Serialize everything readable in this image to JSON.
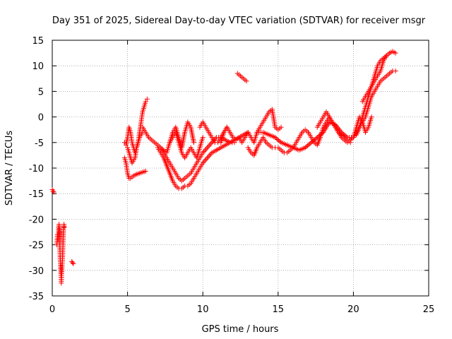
{
  "chart_data": {
    "type": "scatter",
    "title": "Day 351 of 2025, Sidereal Day-to-day VTEC variation (SDTVAR) for receiver msgr",
    "xlabel": "GPS time / hours",
    "ylabel": "SDTVAR / TECUs",
    "xlim": [
      0,
      25
    ],
    "ylim": [
      -35,
      15
    ],
    "xticks": [
      0,
      5,
      10,
      15,
      20,
      25
    ],
    "yticks": [
      -35,
      -30,
      -25,
      -20,
      -15,
      -10,
      -5,
      0,
      5,
      10,
      15
    ],
    "grid": true,
    "marker": "+",
    "color": "#ff0000",
    "series": [
      {
        "segments": [
          {
            "x": [
              0.0,
              0.05,
              0.1
            ],
            "y": [
              -14.2,
              -14.5,
              -14.7
            ]
          },
          {
            "x": [
              0.3,
              0.35,
              0.4,
              0.42,
              0.45,
              0.5,
              0.5,
              0.52,
              0.55,
              0.58,
              0.6,
              0.62,
              0.65,
              0.68,
              0.7,
              0.72,
              0.75,
              0.78,
              0.8
            ],
            "y": [
              -25,
              -23,
              -24,
              -22,
              -21,
              -22.5,
              -25,
              -27,
              -29,
              -31,
              -32.5,
              -31,
              -29.5,
              -28,
              -26,
              -24,
              -22,
              -21,
              -21.5
            ]
          },
          {
            "x": [
              1.3,
              1.35,
              1.4
            ],
            "y": [
              -28.3,
              -28.5,
              -28.7
            ]
          },
          {
            "x": [
              4.8,
              4.9,
              5.0,
              5.1,
              5.2,
              5.3,
              5.4,
              5.5,
              5.6,
              5.7,
              5.8,
              5.9,
              6.0,
              6.1,
              6.2,
              6.3
            ],
            "y": [
              -5,
              -5.5,
              -4,
              -2,
              -3,
              -5,
              -6,
              -7,
              -6,
              -5,
              -3,
              -1,
              1,
              2,
              3,
              3.5
            ]
          },
          {
            "x": [
              4.8,
              4.9,
              5.0,
              5.1,
              5.2,
              5.4,
              5.6,
              5.8,
              6.0,
              6.2
            ],
            "y": [
              -8,
              -9,
              -11,
              -12,
              -12,
              -11.5,
              -11.2,
              -11,
              -10.8,
              -10.6
            ]
          },
          {
            "x": [
              5.0,
              5.1,
              5.2,
              5.3,
              5.5,
              5.6,
              5.8,
              6.0
            ],
            "y": [
              -6,
              -7,
              -8,
              -9,
              -8,
              -6,
              -4,
              -3
            ]
          },
          {
            "x": [
              6.0,
              6.2,
              6.4,
              6.6,
              6.8,
              7.0,
              7.2,
              7.4,
              7.6,
              7.8,
              8.0,
              8.2,
              8.4,
              8.6,
              8.8,
              9.0,
              9.2,
              9.4,
              9.6,
              9.8,
              10.0,
              10.3,
              10.6,
              10.9,
              11.2,
              11.5,
              11.8,
              12.1,
              12.4,
              12.7,
              13.0
            ],
            "y": [
              -2,
              -3,
              -4,
              -4.5,
              -5,
              -5.5,
              -6,
              -7,
              -8,
              -9,
              -10,
              -11,
              -12,
              -12.5,
              -12,
              -11.5,
              -11,
              -10,
              -9,
              -8,
              -7,
              -6,
              -5,
              -4,
              -4,
              -4.5,
              -5,
              -4.5,
              -4,
              -3.5,
              -3
            ]
          },
          {
            "x": [
              7.0,
              7.2,
              7.4,
              7.6,
              7.8,
              8.0,
              8.2,
              8.4,
              8.6,
              8.8,
              9.0,
              9.2,
              9.4,
              9.6,
              9.8,
              10.0,
              10.3,
              10.6,
              10.9,
              11.2,
              11.5,
              11.8,
              12.1
            ],
            "y": [
              -6,
              -7,
              -8,
              -9.5,
              -11,
              -12.5,
              -13.5,
              -14,
              -14,
              -13.5,
              -13.5,
              -13,
              -12,
              -11,
              -10,
              -9,
              -8,
              -7,
              -6.5,
              -6,
              -5.5,
              -5,
              -5
            ]
          },
          {
            "x": [
              7.2,
              7.4,
              7.6,
              7.8,
              8.0,
              8.2,
              8.4,
              8.6,
              8.8,
              9.0,
              9.2,
              9.4
            ],
            "y": [
              -6,
              -6.5,
              -7,
              -5,
              -3,
              -2,
              -4,
              -6,
              -3,
              -1,
              -2,
              -5
            ]
          },
          {
            "x": [
              7.8,
              8.0,
              8.2,
              8.4,
              8.6,
              8.8,
              9.0,
              9.2,
              9.4,
              9.6,
              9.8,
              10.0
            ],
            "y": [
              -5,
              -4,
              -3,
              -5,
              -7,
              -8,
              -7,
              -6,
              -7,
              -8,
              -6,
              -4
            ]
          },
          {
            "x": [
              9.8,
              10.0,
              10.2,
              10.4,
              10.6,
              10.8,
              11.0,
              11.2,
              11.4,
              11.6
            ],
            "y": [
              -2,
              -1,
              -2,
              -3,
              -4,
              -5,
              -5,
              -4,
              -3,
              -2
            ]
          },
          {
            "x": [
              11.2,
              11.4,
              11.6,
              11.8,
              12.0,
              12.2,
              12.4,
              12.6,
              12.8,
              13.0,
              13.2,
              13.4,
              13.6,
              13.8,
              14.0,
              14.2,
              14.4,
              14.6,
              14.8,
              15.0,
              15.2
            ],
            "y": [
              -5,
              -3,
              -2,
              -3,
              -4,
              -4.5,
              -4,
              -5,
              -4,
              -3,
              -4,
              -5,
              -3,
              -2,
              -1,
              0,
              1,
              1.5,
              -2,
              -2.5,
              -2
            ]
          },
          {
            "x": [
              12.3,
              12.5,
              12.7,
              12.9
            ],
            "y": [
              8.5,
              8.0,
              7.5,
              7.0
            ]
          },
          {
            "x": [
              13.0,
              13.2,
              13.4,
              13.6,
              13.8,
              14.0,
              14.2,
              14.4,
              14.6,
              14.8,
              15.0,
              15.2,
              15.4,
              15.6,
              15.8,
              16.0,
              16.2,
              16.4,
              16.6,
              16.8,
              17.0,
              17.2,
              17.4,
              17.6,
              17.8,
              18.0,
              18.2,
              18.4,
              18.6,
              18.8,
              19.0,
              19.2,
              19.4,
              19.6,
              19.8,
              20.0
            ],
            "y": [
              -6,
              -7,
              -7.5,
              -6,
              -5,
              -4,
              -5,
              -5.5,
              -6,
              -6,
              -6,
              -6.5,
              -7,
              -7,
              -6.5,
              -6,
              -5,
              -4,
              -3,
              -2.5,
              -3,
              -4,
              -5,
              -5.5,
              -4,
              -2,
              -1,
              0,
              -1,
              -2,
              -3,
              -4,
              -4.5,
              -5,
              -4.5,
              -4
            ]
          },
          {
            "x": [
              13.6,
              14.0,
              14.4,
              14.8,
              15.2,
              15.6,
              16.0,
              16.4,
              16.8,
              17.2,
              17.6,
              18.0,
              18.4,
              18.8,
              19.2,
              19.6,
              20.0
            ],
            "y": [
              -3,
              -3,
              -3.5,
              -4,
              -5,
              -5.5,
              -6,
              -6.5,
              -6,
              -5,
              -4,
              -3,
              -1,
              -1.5,
              -3,
              -4,
              -4
            ]
          },
          {
            "x": [
              17.6,
              17.8,
              18.0,
              18.2,
              18.4,
              18.6,
              18.8,
              19.0,
              19.2,
              19.4,
              19.6,
              19.8
            ],
            "y": [
              -2,
              -1,
              0,
              1,
              0,
              -1,
              -2,
              -3,
              -3.5,
              -4,
              -4.5,
              -5
            ]
          },
          {
            "x": [
              20.0,
              20.2,
              20.4,
              20.6,
              20.8,
              21.0,
              21.2,
              21.4,
              21.6,
              21.8,
              22.0,
              22.2,
              22.4,
              22.6,
              22.8
            ],
            "y": [
              -4,
              -3,
              -2,
              -1,
              0,
              2,
              4,
              5,
              6,
              7,
              7.5,
              8,
              8.5,
              9,
              9
            ]
          },
          {
            "x": [
              20.2,
              20.4,
              20.6,
              20.8,
              21.0,
              21.2,
              21.4,
              21.6,
              21.8,
              22.0,
              22.2,
              22.4,
              22.6,
              22.8
            ],
            "y": [
              -3.5,
              -2,
              0,
              2,
              4,
              6,
              8,
              10,
              11,
              11.5,
              12,
              12.5,
              12.8,
              12.5
            ]
          },
          {
            "x": [
              20.0,
              20.2,
              20.4,
              20.6,
              20.8,
              21.0,
              21.2
            ],
            "y": [
              -4,
              -2,
              0,
              -1,
              -3,
              -2,
              0
            ]
          },
          {
            "x": [
              20.6,
              20.8,
              21.0,
              21.2,
              21.4,
              21.6,
              21.8,
              22.0,
              22.2
            ],
            "y": [
              3,
              4,
              5,
              6,
              7,
              8,
              9,
              11,
              12
            ]
          }
        ]
      }
    ]
  }
}
